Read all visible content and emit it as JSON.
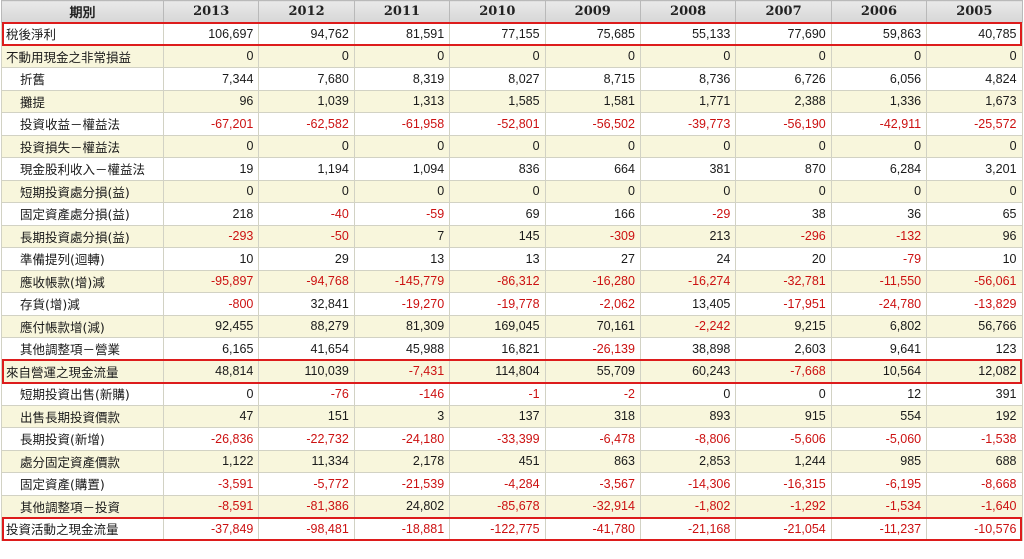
{
  "header": {
    "label": "期別",
    "years": [
      "2013",
      "2012",
      "2011",
      "2010",
      "2009",
      "2008",
      "2007",
      "2006",
      "2005"
    ]
  },
  "rows": [
    {
      "label": "稅後淨利",
      "indent": false,
      "highlight": true,
      "values": [
        "106,697",
        "94,762",
        "81,591",
        "77,155",
        "75,685",
        "55,133",
        "77,690",
        "59,863",
        "40,785"
      ]
    },
    {
      "label": "不動用現金之非常損益",
      "indent": false,
      "highlight": false,
      "values": [
        "0",
        "0",
        "0",
        "0",
        "0",
        "0",
        "0",
        "0",
        "0"
      ]
    },
    {
      "label": "折舊",
      "indent": true,
      "highlight": false,
      "values": [
        "7,344",
        "7,680",
        "8,319",
        "8,027",
        "8,715",
        "8,736",
        "6,726",
        "6,056",
        "4,824"
      ]
    },
    {
      "label": "攤提",
      "indent": true,
      "highlight": false,
      "values": [
        "96",
        "1,039",
        "1,313",
        "1,585",
        "1,581",
        "1,771",
        "2,388",
        "1,336",
        "1,673"
      ]
    },
    {
      "label": "投資收益－權益法",
      "indent": true,
      "highlight": false,
      "values": [
        "-67,201",
        "-62,582",
        "-61,958",
        "-52,801",
        "-56,502",
        "-39,773",
        "-56,190",
        "-42,911",
        "-25,572"
      ]
    },
    {
      "label": "投資損失－權益法",
      "indent": true,
      "highlight": false,
      "values": [
        "0",
        "0",
        "0",
        "0",
        "0",
        "0",
        "0",
        "0",
        "0"
      ]
    },
    {
      "label": "現金股利收入－權益法",
      "indent": true,
      "highlight": false,
      "values": [
        "19",
        "1,194",
        "1,094",
        "836",
        "664",
        "381",
        "870",
        "6,284",
        "3,201"
      ]
    },
    {
      "label": "短期投資處分損(益)",
      "indent": true,
      "highlight": false,
      "values": [
        "0",
        "0",
        "0",
        "0",
        "0",
        "0",
        "0",
        "0",
        "0"
      ]
    },
    {
      "label": "固定資產處分損(益)",
      "indent": true,
      "highlight": false,
      "values": [
        "218",
        "-40",
        "-59",
        "69",
        "166",
        "-29",
        "38",
        "36",
        "65"
      ]
    },
    {
      "label": "長期投資處分損(益)",
      "indent": true,
      "highlight": false,
      "values": [
        "-293",
        "-50",
        "7",
        "145",
        "-309",
        "213",
        "-296",
        "-132",
        "96"
      ]
    },
    {
      "label": "準備提列(迴轉)",
      "indent": true,
      "highlight": false,
      "values": [
        "10",
        "29",
        "13",
        "13",
        "27",
        "24",
        "20",
        "-79",
        "10"
      ]
    },
    {
      "label": "應收帳款(增)減",
      "indent": true,
      "highlight": false,
      "values": [
        "-95,897",
        "-94,768",
        "-145,779",
        "-86,312",
        "-16,280",
        "-16,274",
        "-32,781",
        "-11,550",
        "-56,061"
      ]
    },
    {
      "label": "存貨(增)減",
      "indent": true,
      "highlight": false,
      "values": [
        "-800",
        "32,841",
        "-19,270",
        "-19,778",
        "-2,062",
        "13,405",
        "-17,951",
        "-24,780",
        "-13,829"
      ]
    },
    {
      "label": "應付帳款增(減)",
      "indent": true,
      "highlight": false,
      "values": [
        "92,455",
        "88,279",
        "81,309",
        "169,045",
        "70,161",
        "-2,242",
        "9,215",
        "6,802",
        "56,766"
      ]
    },
    {
      "label": "其他調整項－營業",
      "indent": true,
      "highlight": false,
      "values": [
        "6,165",
        "41,654",
        "45,988",
        "16,821",
        "-26,139",
        "38,898",
        "2,603",
        "9,641",
        "123"
      ]
    },
    {
      "label": "來自營運之現金流量",
      "indent": false,
      "highlight": true,
      "values": [
        "48,814",
        "110,039",
        "-7,431",
        "114,804",
        "55,709",
        "60,243",
        "-7,668",
        "10,564",
        "12,082"
      ]
    },
    {
      "label": "短期投資出售(新購)",
      "indent": true,
      "highlight": false,
      "values": [
        "0",
        "-76",
        "-146",
        "-1",
        "-2",
        "0",
        "0",
        "12",
        "391"
      ]
    },
    {
      "label": "出售長期投資價款",
      "indent": true,
      "highlight": false,
      "values": [
        "47",
        "151",
        "3",
        "137",
        "318",
        "893",
        "915",
        "554",
        "192"
      ]
    },
    {
      "label": "長期投資(新增)",
      "indent": true,
      "highlight": false,
      "values": [
        "-26,836",
        "-22,732",
        "-24,180",
        "-33,399",
        "-6,478",
        "-8,806",
        "-5,606",
        "-5,060",
        "-1,538"
      ]
    },
    {
      "label": "處分固定資產價款",
      "indent": true,
      "highlight": false,
      "values": [
        "1,122",
        "11,334",
        "2,178",
        "451",
        "863",
        "2,853",
        "1,244",
        "985",
        "688"
      ]
    },
    {
      "label": "固定資產(購置)",
      "indent": true,
      "highlight": false,
      "values": [
        "-3,591",
        "-5,772",
        "-21,539",
        "-4,284",
        "-3,567",
        "-14,306",
        "-16,315",
        "-6,195",
        "-8,668"
      ]
    },
    {
      "label": "其他調整項－投資",
      "indent": true,
      "highlight": false,
      "values": [
        "-8,591",
        "-81,386",
        "24,802",
        "-85,678",
        "-32,914",
        "-1,802",
        "-1,292",
        "-1,534",
        "-1,640"
      ]
    },
    {
      "label": "投資活動之現金流量",
      "indent": false,
      "highlight": true,
      "values": [
        "-37,849",
        "-98,481",
        "-18,881",
        "-122,775",
        "-41,780",
        "-21,168",
        "-21,054",
        "-11,237",
        "-10,576"
      ]
    }
  ]
}
